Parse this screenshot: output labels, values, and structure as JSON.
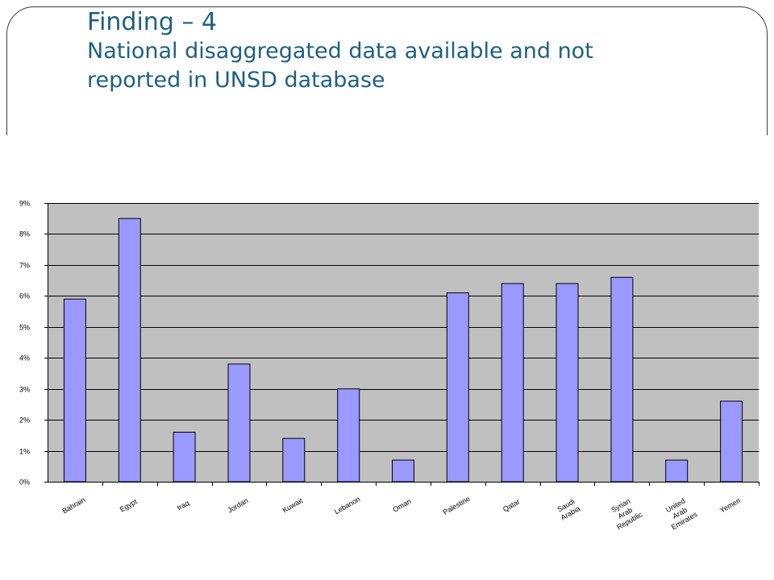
{
  "slide": {
    "title": "Finding – 4",
    "subtitle": "National disaggregated data available and not\nreported in UNSD database"
  },
  "chart_data": {
    "type": "bar",
    "categories": [
      "Bahrain",
      "Egypt",
      "Iraq",
      "Jordan",
      "Kuwait",
      "Lebanon",
      "Oman",
      "Palestine",
      "Qatar",
      "Saudi Arabia",
      "Syrian Arab Republic",
      "United Arab Emirates",
      "Yemen"
    ],
    "category_label_lines": [
      [
        "Bahrain"
      ],
      [
        "Egypt"
      ],
      [
        "Iraq"
      ],
      [
        "Jordan"
      ],
      [
        "Kuwait"
      ],
      [
        "Lebanon"
      ],
      [
        "Oman"
      ],
      [
        "Palestine"
      ],
      [
        "Qatar"
      ],
      [
        "Saudi",
        "Arabia"
      ],
      [
        "Syrian",
        "Arab",
        "Republic"
      ],
      [
        "United",
        "Arab",
        "Emirates"
      ],
      [
        "Yemen"
      ]
    ],
    "values": [
      5.9,
      8.5,
      1.6,
      3.8,
      1.4,
      3.0,
      0.7,
      6.1,
      6.4,
      6.4,
      6.6,
      0.7,
      2.6
    ],
    "yticks": [
      "0%",
      "1%",
      "2%",
      "3%",
      "4%",
      "5%",
      "6%",
      "7%",
      "8%",
      "9%"
    ],
    "ylim": [
      0,
      9
    ],
    "grid": true,
    "colors": {
      "bar": "#9999ff",
      "plot_background": "#c0c0c0",
      "gridline": "#000000"
    }
  }
}
